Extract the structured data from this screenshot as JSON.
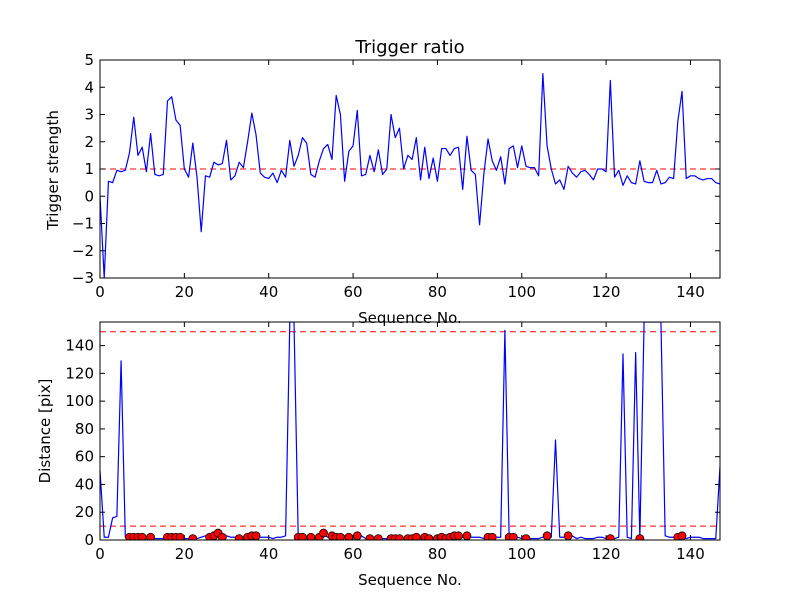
{
  "chart_data": [
    {
      "type": "line",
      "title": "Trigger ratio",
      "xlabel": "Sequence No.",
      "ylabel": "Trigger strength",
      "xlim": [
        0,
        147
      ],
      "ylim": [
        -3,
        5
      ],
      "x_ticks": [
        0,
        20,
        40,
        60,
        80,
        100,
        120,
        140
      ],
      "y_ticks": [
        -3,
        -2,
        -1,
        0,
        1,
        2,
        3,
        4,
        5
      ],
      "y_tick_labels": [
        "−3",
        "−2",
        "−1",
        "0",
        "1",
        "2",
        "3",
        "4",
        "5"
      ],
      "colors": {
        "line": "#0000ff",
        "threshold": "#ff0000"
      },
      "threshold": {
        "y": 1.0,
        "style": "dashed"
      },
      "series": [
        {
          "values": [
            0.0,
            -3.0,
            0.55,
            0.5,
            0.95,
            0.9,
            0.95,
            1.6,
            2.9,
            1.5,
            1.8,
            0.9,
            2.3,
            0.8,
            0.75,
            0.8,
            3.5,
            3.65,
            2.8,
            2.6,
            1.0,
            0.7,
            1.95,
            0.7,
            -1.3,
            0.75,
            0.7,
            1.25,
            1.15,
            1.2,
            2.05,
            0.6,
            0.75,
            1.25,
            1.05,
            2.0,
            3.05,
            2.25,
            0.85,
            0.7,
            0.65,
            0.85,
            0.5,
            0.95,
            0.7,
            2.05,
            1.1,
            1.5,
            2.15,
            1.95,
            0.8,
            0.7,
            1.3,
            1.75,
            1.9,
            1.35,
            3.7,
            3.0,
            0.55,
            1.65,
            1.85,
            3.15,
            0.75,
            0.8,
            1.5,
            0.9,
            1.7,
            0.8,
            1.0,
            3.0,
            2.15,
            2.5,
            1.0,
            1.5,
            1.35,
            2.15,
            0.6,
            1.8,
            0.65,
            1.4,
            0.55,
            1.75,
            1.75,
            1.5,
            1.75,
            1.8,
            0.25,
            2.2,
            0.95,
            0.8,
            -1.05,
            0.8,
            2.1,
            1.3,
            0.95,
            1.45,
            0.45,
            1.75,
            1.85,
            1.05,
            1.85,
            1.1,
            1.05,
            1.05,
            0.75,
            4.5,
            1.85,
            1.0,
            0.45,
            0.6,
            0.25,
            1.1,
            0.85,
            0.7,
            0.9,
            0.95,
            0.8,
            0.6,
            1.0,
            1.0,
            0.9,
            4.25,
            0.7,
            0.95,
            0.4,
            0.75,
            0.5,
            0.45,
            1.3,
            0.55,
            0.5,
            0.5,
            0.95,
            0.45,
            0.5,
            0.7,
            0.65,
            2.75,
            3.85,
            0.65,
            0.75,
            0.75,
            0.65,
            0.6,
            0.65,
            0.65,
            0.5,
            0.45
          ]
        }
      ]
    },
    {
      "type": "line",
      "title": "",
      "xlabel": "Sequence No.",
      "ylabel": "Distance [pix]",
      "xlim": [
        0,
        147
      ],
      "ylim": [
        0,
        157
      ],
      "x_ticks": [
        0,
        20,
        40,
        60,
        80,
        100,
        120,
        140
      ],
      "y_ticks": [
        0,
        20,
        40,
        60,
        80,
        100,
        120,
        140
      ],
      "colors": {
        "line": "#0000ff",
        "threshold": "#ff0000",
        "marker": "#ff0000"
      },
      "thresholds": [
        {
          "y": 150,
          "style": "dashed"
        },
        {
          "y": 10,
          "style": "dashed"
        }
      ],
      "series": [
        {
          "values": [
            50,
            2,
            2,
            16,
            17,
            129,
            2,
            2,
            2,
            1,
            2,
            1,
            2,
            1,
            1,
            1,
            2,
            2,
            1,
            2,
            1,
            1,
            1,
            1,
            2,
            3,
            2,
            2,
            3,
            2,
            3,
            2,
            2,
            2,
            2,
            2,
            2,
            3,
            2,
            2,
            2,
            1,
            2,
            2,
            3,
            157,
            157,
            2,
            2,
            1,
            2,
            1,
            3,
            4,
            2,
            3,
            2,
            2,
            3,
            2,
            2,
            2,
            3,
            1,
            1,
            2,
            1,
            1,
            1,
            2,
            1,
            1,
            1,
            1,
            2,
            2,
            1,
            1,
            2,
            1,
            1,
            1,
            1,
            2,
            1,
            3,
            2,
            3,
            2,
            2,
            2,
            1,
            1,
            2,
            2,
            2,
            151,
            3,
            2,
            2,
            1,
            1,
            1,
            1,
            1,
            2,
            2,
            2,
            72,
            2,
            2,
            2,
            3,
            1,
            2,
            1,
            1,
            1,
            2,
            2,
            1,
            1,
            1,
            2,
            134,
            2,
            1,
            135,
            1,
            157,
            157,
            157,
            157,
            157,
            3,
            2,
            2,
            2,
            2,
            1,
            2,
            2,
            2,
            1,
            1,
            1,
            1,
            53
          ]
        }
      ],
      "markers": {
        "x": [
          7,
          8,
          9,
          10,
          12,
          16,
          17,
          18,
          19,
          22,
          26,
          27,
          28,
          29,
          33,
          35,
          36,
          37,
          47,
          48,
          50,
          52,
          53,
          55,
          56,
          57,
          59,
          61,
          64,
          66,
          69,
          70,
          71,
          73,
          74,
          75,
          77,
          78,
          80,
          81,
          82,
          83,
          84,
          85,
          87,
          92,
          93,
          97,
          98,
          101,
          106,
          111,
          121,
          128,
          137,
          138
        ],
        "values": [
          2,
          2,
          2,
          2,
          2,
          2,
          2,
          2,
          2,
          1,
          2,
          3,
          5,
          2,
          1,
          2,
          3,
          3,
          2,
          2,
          2,
          2,
          5,
          3,
          2,
          2,
          2,
          3,
          1,
          1,
          1,
          1,
          1,
          1,
          1,
          2,
          2,
          1,
          1,
          2,
          1,
          2,
          3,
          3,
          3,
          2,
          2,
          2,
          2,
          1,
          3,
          3,
          1,
          1,
          2,
          3
        ]
      }
    }
  ]
}
